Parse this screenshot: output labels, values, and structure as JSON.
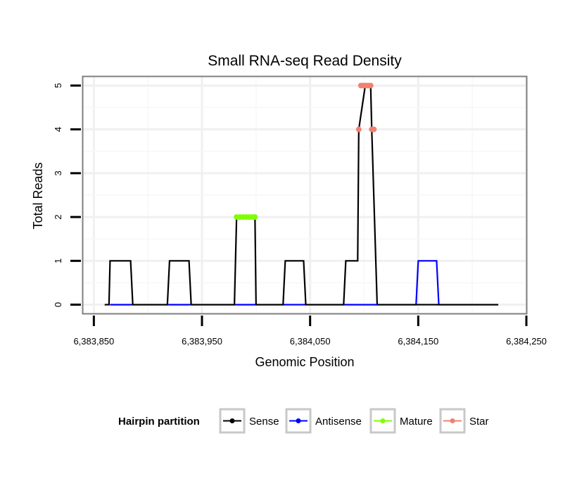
{
  "chart_data": {
    "type": "line",
    "title": "Small RNA-seq Read Density",
    "xlabel": "Genomic Position",
    "ylabel": "Total Reads",
    "xlim": [
      6383840,
      6384250
    ],
    "ylim": [
      -0.2,
      5.2
    ],
    "x_ticks": [
      6383850,
      6383950,
      6384050,
      6384150,
      6384250
    ],
    "x_tick_labels": [
      "6,383,850",
      "6,383,950",
      "6,384,050",
      "6,384,150",
      "6,384,250"
    ],
    "y_ticks": [
      0,
      1,
      2,
      3,
      4,
      5
    ],
    "y_tick_labels": [
      "0",
      "1",
      "2",
      "3",
      "4",
      "5"
    ],
    "grid": true,
    "legend_placement": "bottom",
    "legend_title": "Hairpin partition",
    "series": [
      {
        "name": "Sense",
        "color": "#000000",
        "style": "line",
        "x": [
          6383860,
          6383864,
          6383865,
          6383884,
          6383886,
          6383918,
          6383920,
          6383938,
          6383940,
          6383980,
          6383982,
          6383999,
          6384000,
          6384025,
          6384027,
          6384044,
          6384046,
          6384081,
          6384083,
          6384094,
          6384095,
          6384101,
          6384106,
          6384107,
          6384112,
          6384224
        ],
        "y": [
          0,
          0,
          1,
          1,
          0,
          0,
          1,
          1,
          0,
          0,
          2,
          2,
          0,
          0,
          1,
          1,
          0,
          0,
          1,
          1,
          4,
          5,
          5,
          4,
          0,
          0
        ]
      },
      {
        "name": "Antisense",
        "color": "#0000ff",
        "style": "line",
        "x": [
          6383865,
          6383884,
          6383920,
          6383938,
          6383982,
          6383999,
          6384083,
          6384112,
          6384148,
          6384150,
          6384167,
          6384169,
          6384224
        ],
        "y": [
          0,
          0,
          0,
          0,
          0,
          0,
          0,
          0,
          0,
          1,
          1,
          0,
          0
        ]
      },
      {
        "name": "Mature",
        "color": "#7fff00",
        "style": "points",
        "x": [
          6383982,
          6383985,
          6383988,
          6383991,
          6383994,
          6383997,
          6383999
        ],
        "y": [
          2,
          2,
          2,
          2,
          2,
          2,
          2
        ]
      },
      {
        "name": "Star",
        "color": "#f08070",
        "style": "points",
        "x": [
          6384095,
          6384097,
          6384099,
          6384101,
          6384103,
          6384105,
          6384106,
          6384107,
          6384109
        ],
        "y": [
          4,
          5,
          5,
          5,
          5,
          5,
          5,
          4,
          4
        ]
      }
    ]
  }
}
